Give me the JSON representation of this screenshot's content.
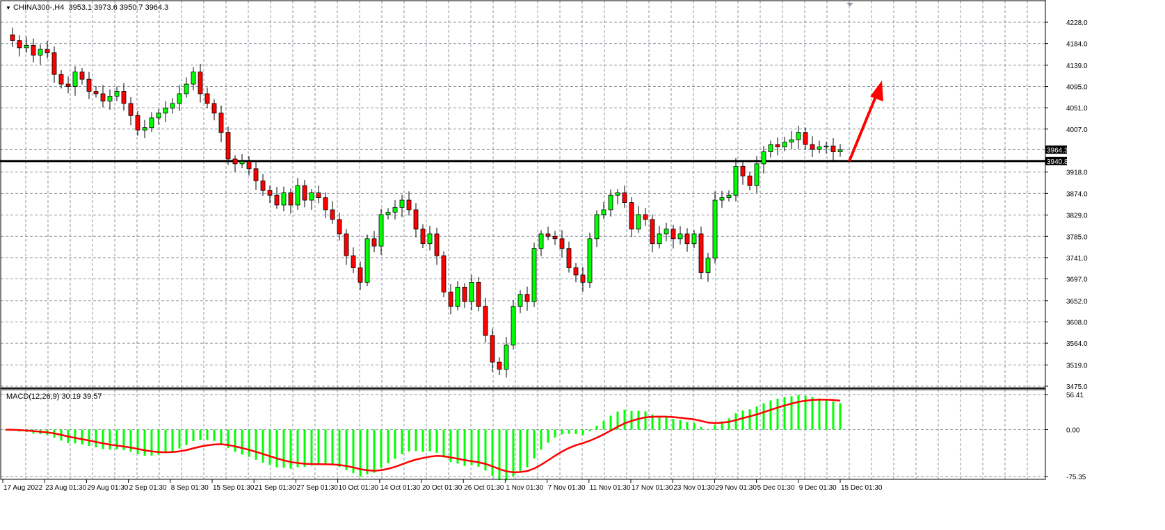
{
  "header": {
    "symbol": "CHINA300-,H4",
    "ohlc": "3953.1 3973.6 3950.7 3964.3"
  },
  "macd": {
    "label": "MACD(12,26,9) 30.19 39.57",
    "axis": [
      "56.41",
      "0.00",
      "-75.35"
    ],
    "range": [
      -75.35,
      56.41
    ],
    "fast": 12,
    "slow": 26,
    "signal": 9
  },
  "price_axis": [
    "4228.0",
    "4184.0",
    "4139.0",
    "4095.0",
    "4051.0",
    "4007.0",
    "3918.0",
    "3874.0",
    "3829.0",
    "3785.0",
    "3741.0",
    "3697.0",
    "3652.0",
    "3608.0",
    "3564.0",
    "3519.0",
    "3475.0"
  ],
  "price_range": [
    3475.0,
    4228.0
  ],
  "current_price": "3964.3",
  "level_line": "3940.8",
  "date_axis": [
    "17 Aug 2022",
    "23 Aug 01:30",
    "29 Aug 01:30",
    "2 Sep 01:30",
    "8 Sep 01:30",
    "15 Sep 01:30",
    "21 Sep 01:30",
    "27 Sep 01:30",
    "10 Oct 01:30",
    "14 Oct 01:30",
    "20 Oct 01:30",
    "26 Oct 01:30",
    "1 Nov 01:30",
    "7 Nov 01:30",
    "11 Nov 01:30",
    "17 Nov 01:30",
    "23 Nov 01:30",
    "29 Nov 01:30",
    "5 Dec 01:30",
    "9 Dec 01:30",
    "15 Dec 01:30"
  ],
  "colors": {
    "bull": "#00ff00",
    "bear": "#ff0000",
    "signal": "#ff0000",
    "histogram": "#00ff00",
    "grid": "#8a96a0",
    "arrow": "#ff0000"
  },
  "closes": [
    4202,
    4190,
    4175,
    4180,
    4160,
    4172,
    4165,
    4120,
    4100,
    4095,
    4125,
    4110,
    4085,
    4080,
    4065,
    4075,
    4085,
    4060,
    4035,
    4005,
    4010,
    4030,
    4040,
    4050,
    4060,
    4080,
    4100,
    4125,
    4080,
    4060,
    4040,
    4000,
    3945,
    3935,
    3940,
    3925,
    3900,
    3880,
    3870,
    3850,
    3875,
    3850,
    3890,
    3860,
    3875,
    3865,
    3840,
    3820,
    3790,
    3745,
    3720,
    3690,
    3780,
    3765,
    3830,
    3835,
    3845,
    3860,
    3840,
    3800,
    3770,
    3790,
    3745,
    3670,
    3640,
    3680,
    3650,
    3690,
    3640,
    3580,
    3525,
    3510,
    3560,
    3640,
    3665,
    3650,
    3760,
    3790,
    3785,
    3780,
    3760,
    3720,
    3705,
    3690,
    3780,
    3830,
    3840,
    3870,
    3875,
    3855,
    3800,
    3830,
    3820,
    3770,
    3790,
    3800,
    3780,
    3790,
    3770,
    3790,
    3710,
    3740,
    3860,
    3865,
    3870,
    3930,
    3910,
    3890,
    3935,
    3960,
    3975,
    3970,
    3980,
    3985,
    4000,
    3975,
    3965,
    3970,
    3972,
    3960,
    3964
  ]
}
